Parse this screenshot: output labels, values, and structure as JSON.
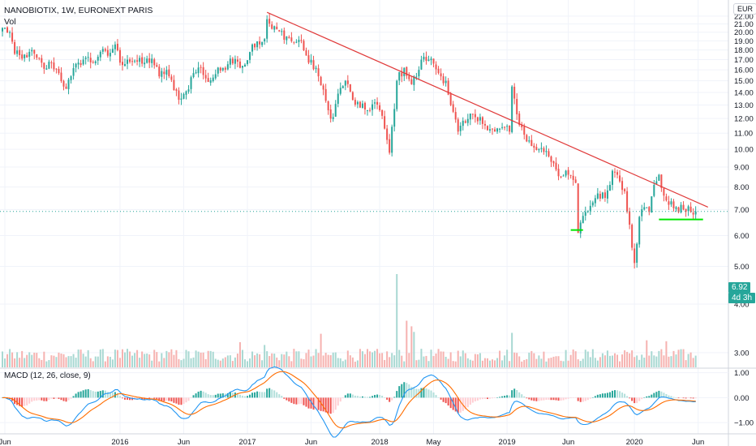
{
  "header": {
    "title": "NANOBIOTIX, 1W, EURONEXT PARIS",
    "volume_label": "Vol",
    "currency_button": "EUR"
  },
  "price_badges": {
    "last_price": "6.92",
    "countdown": "4d 3h"
  },
  "macd": {
    "label": "MACD (12, 26, close, 9)",
    "ylim": [
      -1.45,
      1.15
    ],
    "ticks": [
      "1.00",
      "0.00",
      "−1.00"
    ],
    "tick_values": [
      1,
      0,
      -1
    ],
    "macd_line_color": "#2196f3",
    "signal_line_color": "#ff6d00"
  },
  "colors": {
    "up": "#26a69a",
    "down": "#ef5350",
    "trendline": "#e03a3a",
    "support": "#00e600",
    "last_price_bg": "#26a69a"
  },
  "chart_data": {
    "type": "candlestick",
    "title": "NANOBIOTIX, 1W, EURONEXT PARIS",
    "y_scale": "log",
    "ylim": [
      2.75,
      24.2
    ],
    "y_ticks": [
      22,
      21,
      20,
      19,
      18,
      17,
      16,
      15,
      14,
      13,
      12,
      11,
      10,
      9,
      8,
      7,
      6,
      5,
      4,
      3
    ],
    "x_labels": [
      "Jun",
      "2016",
      "Jun",
      "2017",
      "Jun",
      "2018",
      "May",
      "2019",
      "Jun",
      "2020",
      "Jun"
    ],
    "x_label_weeks": [
      1,
      48,
      74,
      100,
      126,
      154,
      176,
      206,
      231,
      258,
      284
    ],
    "price_anchors": [
      [
        0,
        20.5
      ],
      [
        3,
        20.0
      ],
      [
        5,
        17.6
      ],
      [
        8,
        17.1
      ],
      [
        11,
        17.8
      ],
      [
        14,
        17.2
      ],
      [
        17,
        16.1
      ],
      [
        20,
        16.7
      ],
      [
        23,
        15.7
      ],
      [
        26,
        14.3
      ],
      [
        28,
        15.4
      ],
      [
        31,
        16.7
      ],
      [
        34,
        17.2
      ],
      [
        37,
        16.7
      ],
      [
        40,
        17.8
      ],
      [
        43,
        17.4
      ],
      [
        46,
        18.6
      ],
      [
        48,
        16.7
      ],
      [
        51,
        17.0
      ],
      [
        54,
        16.9
      ],
      [
        57,
        16.6
      ],
      [
        61,
        17.1
      ],
      [
        64,
        15.4
      ],
      [
        67,
        16.0
      ],
      [
        70,
        14.2
      ],
      [
        73,
        13.5
      ],
      [
        75,
        14.1
      ],
      [
        78,
        15.7
      ],
      [
        81,
        16.2
      ],
      [
        84,
        14.9
      ],
      [
        87,
        15.6
      ],
      [
        90,
        16.2
      ],
      [
        93,
        17.1
      ],
      [
        96,
        16.8
      ],
      [
        99,
        16.5
      ],
      [
        102,
        18.6
      ],
      [
        105,
        18.6
      ],
      [
        107,
        19.2
      ],
      [
        108,
        21.6
      ],
      [
        110,
        20.4
      ],
      [
        113,
        20.1
      ],
      [
        116,
        19.5
      ],
      [
        119,
        18.8
      ],
      [
        122,
        19.0
      ],
      [
        125,
        16.7
      ],
      [
        128,
        16.2
      ],
      [
        130,
        14.6
      ],
      [
        133,
        12.6
      ],
      [
        135,
        12.1
      ],
      [
        137,
        13.9
      ],
      [
        140,
        15.0
      ],
      [
        143,
        13.4
      ],
      [
        146,
        12.8
      ],
      [
        149,
        12.6
      ],
      [
        152,
        13.2
      ],
      [
        154,
        12.6
      ],
      [
        156,
        11.3
      ],
      [
        158,
        9.8
      ],
      [
        161,
        15.0
      ],
      [
        164,
        16.2
      ],
      [
        167,
        14.7
      ],
      [
        170,
        16.0
      ],
      [
        172,
        17.3
      ],
      [
        174,
        17.0
      ],
      [
        176,
        16.6
      ],
      [
        178,
        15.7
      ],
      [
        181,
        15.0
      ],
      [
        183,
        13.0
      ],
      [
        186,
        11.1
      ],
      [
        189,
        11.7
      ],
      [
        192,
        12.3
      ],
      [
        195,
        12.1
      ],
      [
        198,
        11.2
      ],
      [
        201,
        11.1
      ],
      [
        204,
        11.4
      ],
      [
        207,
        11.1
      ],
      [
        208,
        14.5
      ],
      [
        210,
        12.3
      ],
      [
        213,
        10.9
      ],
      [
        216,
        10.2
      ],
      [
        219,
        10.0
      ],
      [
        222,
        9.9
      ],
      [
        225,
        9.2
      ],
      [
        228,
        8.5
      ],
      [
        231,
        8.6
      ],
      [
        234,
        8.2
      ],
      [
        235,
        6.1
      ],
      [
        238,
        6.9
      ],
      [
        241,
        7.3
      ],
      [
        243,
        7.7
      ],
      [
        246,
        7.5
      ],
      [
        249,
        8.8
      ],
      [
        251,
        8.6
      ],
      [
        254,
        7.8
      ],
      [
        256,
        6.4
      ],
      [
        258,
        5.1
      ],
      [
        260,
        6.7
      ],
      [
        262,
        7.1
      ],
      [
        264,
        6.9
      ],
      [
        266,
        8.1
      ],
      [
        268,
        8.6
      ],
      [
        270,
        7.6
      ],
      [
        272,
        7.2
      ],
      [
        275,
        7.1
      ],
      [
        278,
        7.0
      ],
      [
        281,
        6.9
      ],
      [
        283,
        6.92
      ]
    ],
    "trendline": {
      "start": [
        108,
        22.5
      ],
      "end": [
        288,
        7.1
      ]
    },
    "support_levels": [
      {
        "from_week": 232,
        "to_week": 237,
        "price": 6.2
      },
      {
        "from_week": 268,
        "to_week": 286,
        "price": 6.6
      }
    ],
    "volume": {
      "spikes": [
        [
          161,
          100
        ],
        [
          165,
          50
        ],
        [
          167,
          44
        ],
        [
          168,
          38
        ],
        [
          130,
          36
        ],
        [
          208,
          37
        ],
        [
          97,
          27
        ],
        [
          263,
          29
        ],
        [
          0,
          17
        ],
        [
          4,
          16
        ],
        [
          107,
          24
        ],
        [
          46,
          19
        ],
        [
          247,
          18
        ],
        [
          256,
          15
        ],
        [
          271,
          28
        ]
      ]
    },
    "last_price": 6.92
  }
}
